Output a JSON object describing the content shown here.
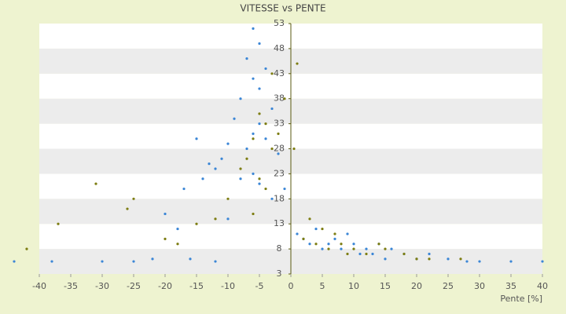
{
  "chart_data": {
    "type": "scatter",
    "title": "VITESSE vs PENTE",
    "x_label": "Pente [%]",
    "xlim": [
      -40,
      40
    ],
    "xticks": [
      -40,
      -35,
      -30,
      -25,
      -20,
      -15,
      -10,
      -5,
      0,
      5,
      10,
      15,
      20,
      25,
      30,
      35,
      40
    ],
    "ylim": [
      3,
      53
    ],
    "yticks": [
      3,
      8,
      13,
      18,
      23,
      28,
      33,
      38,
      43,
      48,
      53
    ],
    "grid": true,
    "series": [
      {
        "name": "blue",
        "color": "#3b86d6",
        "x": [
          -6,
          -5,
          -7,
          -4,
          -6,
          -5,
          -8,
          -3,
          -9,
          -5,
          -6,
          -4,
          -10,
          -7,
          -2,
          -11,
          -12,
          -6,
          -8,
          -5,
          -15,
          -13,
          -17,
          -14,
          -20,
          -18,
          -10,
          -3,
          -1,
          1,
          2,
          3,
          4,
          5,
          6,
          7,
          8,
          9,
          10,
          11,
          12,
          13,
          14,
          15,
          16,
          18,
          20,
          22,
          25,
          28,
          -38,
          -30,
          -25,
          -22,
          -16,
          -12,
          30,
          35,
          40,
          -44
        ],
        "values": [
          52,
          49,
          46,
          44,
          42,
          40,
          38,
          36,
          34,
          33,
          31,
          30,
          29,
          28,
          27,
          26,
          24,
          23,
          22,
          21,
          30,
          25,
          20,
          22,
          15,
          12,
          14,
          18,
          20,
          11,
          10,
          9,
          12,
          8,
          9,
          10,
          8,
          11,
          9,
          7,
          8,
          7,
          9,
          6,
          8,
          7,
          6,
          7,
          6,
          5.5,
          5.5,
          5.5,
          5.5,
          6,
          6,
          5.5,
          5.5,
          5.5,
          5.5,
          5.5
        ]
      },
      {
        "name": "olive",
        "color": "#7d7d12",
        "x": [
          -5,
          -4,
          -6,
          -3,
          -7,
          -2,
          -8,
          -1,
          1,
          -4,
          -10,
          -12,
          -15,
          -20,
          -26,
          -31,
          -37,
          -42,
          -25,
          -18,
          2,
          4,
          6,
          8,
          10,
          12,
          15,
          18,
          22,
          27,
          5,
          3,
          7,
          9,
          -6,
          -5,
          -3,
          0.5,
          14,
          20
        ],
        "values": [
          35,
          33,
          30,
          28,
          26,
          31,
          24,
          38,
          45,
          20,
          18,
          14,
          13,
          10,
          16,
          21,
          13,
          8,
          18,
          9,
          10,
          9,
          8,
          9,
          8,
          7,
          8,
          7,
          6,
          6,
          12,
          14,
          11,
          7,
          15,
          22,
          43,
          28,
          9,
          6
        ]
      }
    ]
  }
}
